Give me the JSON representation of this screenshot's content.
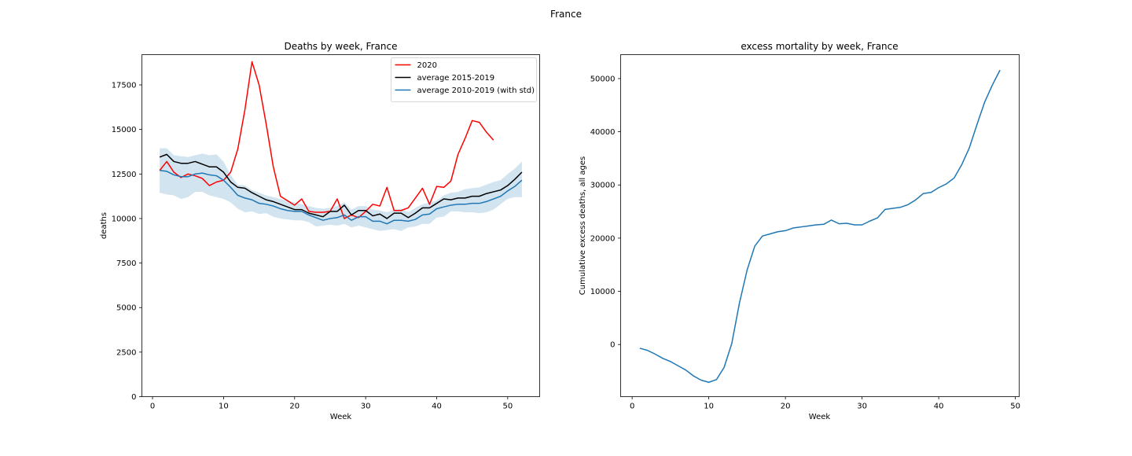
{
  "figure": {
    "suptitle": "France"
  },
  "chart_data": [
    {
      "type": "line",
      "title": "Deaths by week, France",
      "xlabel": "Week",
      "ylabel": "deaths",
      "xlim": [
        -1.5,
        54.5
      ],
      "ylim": [
        0,
        19200
      ],
      "xticks": [
        0,
        10,
        20,
        30,
        40,
        50
      ],
      "yticks": [
        0,
        2500,
        5000,
        7500,
        10000,
        12500,
        15000,
        17500
      ],
      "grid": false,
      "legend_position": "upper right",
      "band": {
        "color": "#1f77b4",
        "x": [
          1,
          2,
          3,
          4,
          5,
          6,
          7,
          8,
          9,
          10,
          11,
          12,
          13,
          14,
          15,
          16,
          17,
          18,
          19,
          20,
          21,
          22,
          23,
          24,
          25,
          26,
          27,
          28,
          29,
          30,
          31,
          32,
          33,
          34,
          35,
          36,
          37,
          38,
          39,
          40,
          41,
          42,
          43,
          44,
          45,
          46,
          47,
          48,
          49,
          50,
          51,
          52
        ],
        "upper": [
          13950,
          13950,
          13550,
          13500,
          13450,
          13550,
          13650,
          13550,
          13600,
          13200,
          12450,
          11900,
          11850,
          11600,
          11450,
          11300,
          11200,
          11100,
          11000,
          10900,
          10800,
          10700,
          10600,
          10550,
          10600,
          10700,
          10900,
          10500,
          10700,
          10700,
          10500,
          10450,
          10350,
          10500,
          10550,
          10350,
          10600,
          10800,
          10900,
          11000,
          11300,
          11450,
          11500,
          11650,
          11700,
          11750,
          11900,
          12050,
          12150,
          12500,
          12800,
          13200
        ],
        "lower": [
          11450,
          11350,
          11300,
          11100,
          11200,
          11500,
          11500,
          11300,
          11200,
          11100,
          10900,
          10550,
          10350,
          10400,
          10250,
          10300,
          10100,
          10000,
          9950,
          9900,
          9900,
          9800,
          9550,
          9600,
          9650,
          9600,
          9700,
          9500,
          9600,
          9500,
          9400,
          9300,
          9350,
          9400,
          9300,
          9500,
          9550,
          9700,
          9700,
          10050,
          10100,
          10400,
          10400,
          10350,
          10350,
          10300,
          10350,
          10500,
          10800,
          11100,
          11200,
          11200
        ]
      },
      "series": [
        {
          "name": "2020",
          "color": "#ff0000",
          "x": [
            1,
            2,
            3,
            4,
            5,
            6,
            7,
            8,
            9,
            10,
            11,
            12,
            13,
            14,
            15,
            16,
            17,
            18,
            19,
            20,
            21,
            22,
            23,
            24,
            25,
            26,
            27,
            28,
            29,
            30,
            31,
            32,
            33,
            34,
            35,
            36,
            37,
            38,
            39,
            40,
            41,
            42,
            43,
            44,
            45,
            46,
            47,
            48
          ],
          "values": [
            12700,
            13200,
            12600,
            12300,
            12500,
            12400,
            12250,
            11850,
            12050,
            12150,
            12600,
            13900,
            16100,
            18800,
            17500,
            15300,
            12900,
            11250,
            11000,
            10750,
            11100,
            10400,
            10350,
            10350,
            10400,
            11100,
            10000,
            10200,
            10050,
            10400,
            10800,
            10700,
            11750,
            10450,
            10450,
            10600,
            11150,
            11700,
            10800,
            11800,
            11750,
            12100,
            13600,
            14500,
            15500,
            15400,
            14850,
            14400
          ]
        },
        {
          "name": "average 2015-2019",
          "color": "#000000",
          "x": [
            1,
            2,
            3,
            4,
            5,
            6,
            7,
            8,
            9,
            10,
            11,
            12,
            13,
            14,
            15,
            16,
            17,
            18,
            19,
            20,
            21,
            22,
            23,
            24,
            25,
            26,
            27,
            28,
            29,
            30,
            31,
            32,
            33,
            34,
            35,
            36,
            37,
            38,
            39,
            40,
            41,
            42,
            43,
            44,
            45,
            46,
            47,
            48,
            49,
            50,
            51,
            52
          ],
          "values": [
            13450,
            13600,
            13200,
            13100,
            13100,
            13200,
            13050,
            12900,
            12900,
            12600,
            12050,
            11750,
            11700,
            11450,
            11250,
            11050,
            10950,
            10800,
            10650,
            10500,
            10500,
            10300,
            10200,
            10100,
            10400,
            10400,
            10750,
            10200,
            10450,
            10450,
            10150,
            10250,
            10000,
            10300,
            10300,
            10050,
            10300,
            10600,
            10600,
            10850,
            11100,
            11050,
            11150,
            11150,
            11250,
            11250,
            11400,
            11500,
            11600,
            11850,
            12200,
            12600
          ]
        },
        {
          "name": "average 2010-2019 (with std)",
          "color": "#1f77b4",
          "x": [
            1,
            2,
            3,
            4,
            5,
            6,
            7,
            8,
            9,
            10,
            11,
            12,
            13,
            14,
            15,
            16,
            17,
            18,
            19,
            20,
            21,
            22,
            23,
            24,
            25,
            26,
            27,
            28,
            29,
            30,
            31,
            32,
            33,
            34,
            35,
            36,
            37,
            38,
            39,
            40,
            41,
            42,
            43,
            44,
            45,
            46,
            47,
            48,
            49,
            50,
            51,
            52
          ],
          "values": [
            12700,
            12650,
            12450,
            12350,
            12350,
            12500,
            12550,
            12450,
            12400,
            12150,
            11750,
            11300,
            11150,
            11050,
            10850,
            10800,
            10700,
            10550,
            10450,
            10400,
            10400,
            10200,
            10050,
            9900,
            10000,
            10050,
            10200,
            9900,
            10100,
            10100,
            9850,
            9850,
            9700,
            9900,
            9900,
            9850,
            9950,
            10200,
            10250,
            10550,
            10650,
            10750,
            10800,
            10800,
            10850,
            10850,
            10950,
            11100,
            11250,
            11550,
            11800,
            12150
          ]
        }
      ]
    },
    {
      "type": "line",
      "title": "excess mortality by week, France",
      "xlabel": "Week",
      "ylabel": "Cumulative excess deaths, all ages",
      "xlim": [
        -1.5,
        50.5
      ],
      "ylim": [
        -9800,
        54500
      ],
      "xticks": [
        0,
        10,
        20,
        30,
        40,
        50
      ],
      "yticks": [
        0,
        10000,
        20000,
        30000,
        40000,
        50000
      ],
      "grid": false,
      "series": [
        {
          "color": "#1f77b4",
          "x": [
            1,
            2,
            3,
            4,
            5,
            6,
            7,
            8,
            9,
            10,
            11,
            12,
            13,
            14,
            15,
            16,
            17,
            18,
            19,
            20,
            21,
            22,
            23,
            24,
            25,
            26,
            27,
            28,
            29,
            30,
            31,
            32,
            33,
            34,
            35,
            36,
            37,
            38,
            39,
            40,
            41,
            42,
            43,
            44,
            45,
            46,
            47,
            48
          ],
          "values": [
            -700,
            -1100,
            -1800,
            -2600,
            -3200,
            -4000,
            -4800,
            -5900,
            -6700,
            -7100,
            -6600,
            -4300,
            200,
            7800,
            14000,
            18500,
            20400,
            20800,
            21200,
            21400,
            21900,
            22100,
            22300,
            22500,
            22600,
            23400,
            22700,
            22800,
            22500,
            22500,
            23200,
            23800,
            25400,
            25600,
            25800,
            26300,
            27200,
            28400,
            28600,
            29500,
            30200,
            31300,
            33800,
            37000,
            41400,
            45600,
            48800,
            51600
          ]
        }
      ]
    }
  ]
}
